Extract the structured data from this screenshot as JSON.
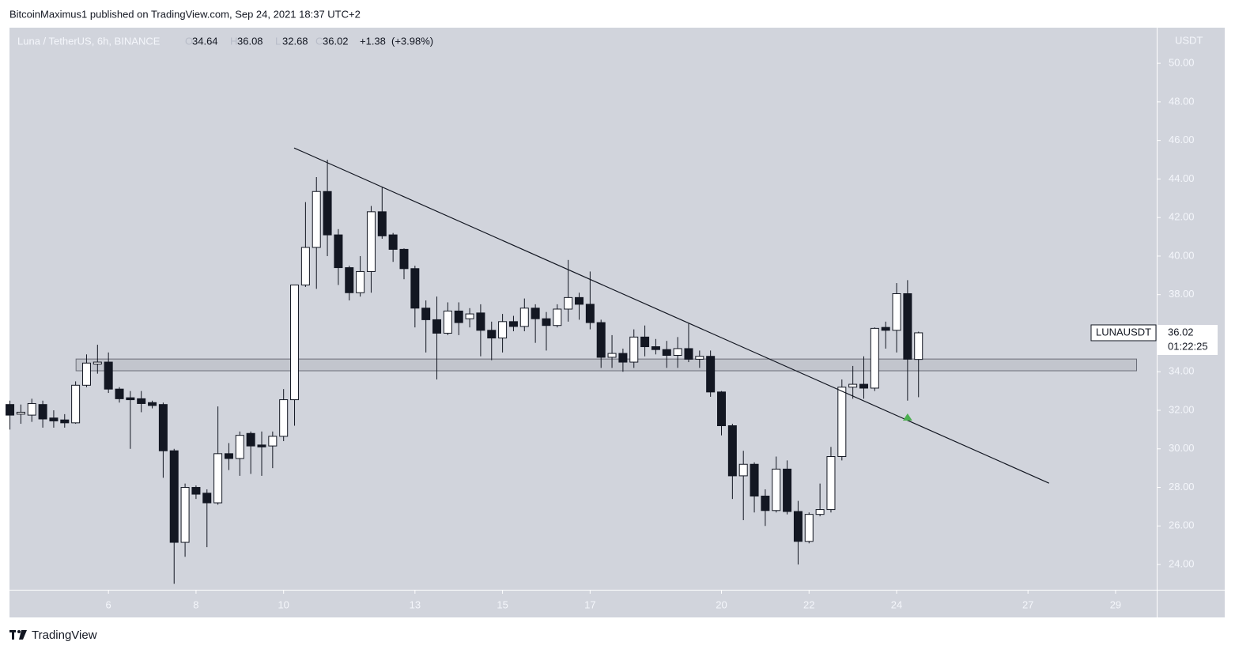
{
  "header": {
    "byline": "BitcoinMaximus1 published on TradingView.com, Sep 24, 2021 18:37 UTC+2",
    "watermark": "TradingView"
  },
  "chart_data": {
    "type": "candlestick",
    "title": "Luna / TetherUS, 6h, BINANCE",
    "ohlc_labels": [
      "O",
      "H",
      "L",
      "C"
    ],
    "change": "+1.38",
    "change_pct": "(+3.98%)",
    "y_axis_label": "USDT",
    "symbol": "LUNAUSDT",
    "countdown": "01:22:25",
    "x": [
      3.75,
      4,
      4.25,
      4.5,
      4.75,
      5,
      5.25,
      5.5,
      5.75,
      6,
      6.25,
      6.5,
      6.75,
      7,
      7.25,
      7.5,
      7.75,
      8,
      8.25,
      8.5,
      8.75,
      9,
      9.25,
      9.5,
      9.75,
      10,
      10.25,
      10.5,
      10.75,
      11,
      11.25,
      11.5,
      11.75,
      12,
      12.25,
      12.5,
      12.75,
      13,
      13.25,
      13.5,
      13.75,
      14,
      14.25,
      14.5,
      14.75,
      15,
      15.25,
      15.5,
      15.75,
      16,
      16.25,
      16.5,
      16.75,
      17,
      17.25,
      17.5,
      17.75,
      18,
      18.25,
      18.5,
      18.75,
      19,
      19.25,
      19.5,
      19.75,
      20,
      20.25,
      20.5,
      20.75,
      21,
      21.25,
      21.5,
      21.75,
      22,
      22.25,
      22.5,
      22.75,
      23,
      23.25,
      23.5,
      23.75,
      24,
      24.25,
      24.5
    ],
    "open": [
      32.3,
      31.8,
      31.75,
      32.3,
      31.6,
      31.5,
      31.35,
      33.3,
      34.4,
      34.5,
      33.1,
      32.65,
      32.6,
      32.4,
      32.3,
      29.9,
      25.15,
      28.0,
      27.7,
      27.2,
      29.75,
      29.5,
      30.8,
      30.2,
      30.15,
      30.65,
      32.55,
      38.5,
      40.45,
      43.35,
      41.1,
      39.4,
      38.1,
      39.2,
      42.3,
      41.1,
      40.35,
      39.35,
      37.3,
      36.7,
      36.0,
      37.15,
      36.75,
      37.05,
      36.15,
      35.75,
      36.6,
      36.35,
      37.3,
      36.75,
      36.4,
      37.25,
      37.85,
      37.5,
      36.55,
      34.75,
      34.95,
      34.5,
      35.8,
      35.3,
      35.15,
      34.85,
      35.2,
      34.65,
      34.8,
      32.95,
      31.2,
      28.6,
      29.2,
      27.55,
      26.8,
      28.95,
      26.75,
      25.2,
      26.6,
      26.85,
      29.6,
      33.2,
      33.35,
      33.15,
      36.3,
      36.15,
      38.05,
      34.64
    ],
    "high": [
      32.5,
      32.3,
      32.6,
      32.5,
      32.0,
      31.8,
      33.5,
      34.9,
      35.4,
      35.0,
      33.2,
      33.0,
      33.0,
      32.5,
      32.4,
      30.0,
      28.2,
      28.1,
      27.9,
      32.2,
      30.3,
      30.9,
      30.9,
      30.9,
      30.9,
      33.1,
      38.5,
      42.8,
      44.1,
      45.0,
      41.4,
      39.5,
      40.0,
      42.6,
      43.6,
      41.2,
      40.4,
      39.5,
      37.7,
      37.9,
      37.6,
      37.6,
      37.3,
      37.5,
      36.6,
      37.0,
      36.9,
      37.8,
      37.5,
      37.1,
      37.5,
      39.8,
      38.1,
      39.2,
      36.7,
      35.9,
      35.2,
      36.2,
      36.4,
      35.7,
      35.6,
      35.8,
      36.5,
      35.1,
      35.1,
      33.0,
      31.3,
      29.9,
      29.3,
      27.9,
      29.6,
      29.4,
      27.3,
      26.7,
      28.2,
      30.1,
      33.6,
      34.3,
      34.8,
      36.3,
      36.6,
      38.6,
      38.75,
      36.08
    ],
    "low": [
      31.0,
      31.3,
      31.4,
      31.1,
      31.1,
      31.1,
      31.3,
      33.2,
      33.9,
      32.9,
      32.4,
      30.0,
      31.9,
      32.1,
      28.5,
      23.0,
      24.4,
      27.4,
      24.9,
      27.1,
      28.9,
      28.6,
      28.7,
      28.6,
      29.0,
      30.4,
      31.2,
      38.4,
      38.3,
      40.0,
      38.5,
      37.7,
      37.9,
      38.1,
      40.9,
      39.7,
      38.8,
      36.3,
      35.0,
      33.6,
      35.9,
      35.9,
      36.3,
      34.8,
      34.6,
      35.0,
      36.1,
      36.1,
      35.5,
      35.1,
      36.3,
      36.6,
      36.7,
      36.2,
      34.2,
      34.2,
      34.0,
      34.2,
      34.8,
      34.9,
      34.2,
      34.2,
      34.5,
      34.2,
      32.7,
      30.7,
      27.4,
      26.3,
      26.7,
      26.0,
      26.7,
      26.6,
      24.0,
      25.1,
      26.5,
      26.7,
      29.4,
      32.6,
      32.6,
      33.0,
      35.2,
      35.0,
      32.5,
      32.68
    ],
    "close": [
      31.75,
      31.9,
      32.35,
      31.55,
      31.45,
      31.35,
      33.3,
      34.45,
      34.5,
      33.1,
      32.6,
      32.55,
      32.35,
      32.25,
      29.9,
      25.15,
      28.0,
      27.65,
      27.2,
      29.75,
      29.5,
      30.7,
      30.15,
      30.1,
      30.65,
      32.55,
      38.5,
      40.45,
      43.35,
      41.1,
      39.4,
      38.1,
      39.2,
      42.3,
      41.05,
      40.35,
      39.35,
      37.3,
      36.7,
      36.0,
      37.15,
      36.55,
      37.0,
      36.15,
      35.75,
      36.6,
      36.35,
      37.3,
      36.75,
      36.4,
      37.25,
      37.85,
      37.5,
      36.55,
      34.75,
      34.95,
      34.5,
      35.8,
      35.3,
      35.15,
      34.85,
      35.2,
      34.65,
      34.8,
      32.95,
      31.2,
      28.6,
      29.2,
      27.55,
      26.8,
      28.95,
      26.75,
      25.2,
      26.6,
      26.85,
      29.6,
      33.2,
      33.35,
      33.15,
      36.25,
      36.15,
      38.05,
      34.65,
      36.02
    ],
    "up_color": "#ffffff",
    "down_color": "#131722",
    "xlim": [
      3.74,
      29.94
    ],
    "ylim": [
      22.69,
      51.85
    ],
    "xticks": [
      6,
      8,
      10,
      13,
      15,
      17,
      20,
      22,
      24,
      27,
      29
    ],
    "yticks": [
      {
        "value": 24,
        "label": "24.00"
      },
      {
        "value": 26,
        "label": "26.00"
      },
      {
        "value": 28,
        "label": "28.00"
      },
      {
        "value": 30,
        "label": "30.00"
      },
      {
        "value": 32,
        "label": "32.00"
      },
      {
        "value": 34,
        "label": "34.00"
      },
      {
        "value": 36,
        "label": "36.00"
      },
      {
        "value": 38,
        "label": "38.00"
      },
      {
        "value": 40,
        "label": "40.00"
      },
      {
        "value": 42,
        "label": "42.00"
      },
      {
        "value": 44,
        "label": "44.00"
      },
      {
        "value": 46,
        "label": "46.00"
      },
      {
        "value": 48,
        "label": "48.00"
      },
      {
        "value": 50,
        "label": "50.00"
      }
    ],
    "trendline": {
      "x": [
        10.24,
        27.48
      ],
      "y": [
        45.61,
        28.22
      ]
    },
    "support_zone": {
      "x": [
        5.26,
        29.48
      ],
      "y": [
        34.05,
        34.66
      ]
    },
    "marker": {
      "x": 24.25,
      "y": 31.63,
      "color": "#4caf50"
    }
  }
}
